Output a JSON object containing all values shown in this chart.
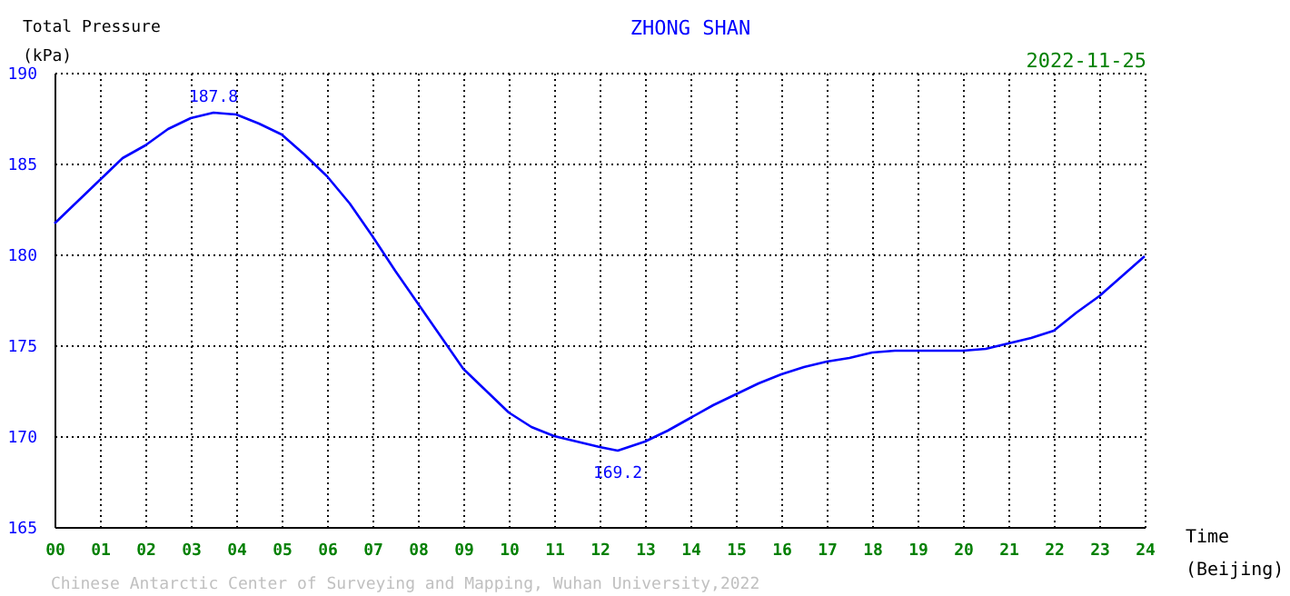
{
  "chart_data": {
    "type": "line",
    "title": "ZHONG SHAN",
    "subtitle": "2022-11-25",
    "xlabel": "Time\n(Beijing)",
    "ylabel": "Total Pressure\n(kPa)",
    "x": [
      0,
      0.5,
      1,
      1.5,
      2,
      2.5,
      3,
      3.5,
      4,
      4.5,
      5,
      5.5,
      6,
      6.5,
      7,
      7.5,
      8,
      8.5,
      9,
      9.5,
      10,
      10.5,
      11,
      11.5,
      12,
      12.4,
      13,
      13.5,
      14,
      14.5,
      15,
      15.5,
      16,
      16.5,
      17,
      17.5,
      18,
      18.5,
      19,
      19.5,
      20,
      20.5,
      21,
      21.5,
      22,
      22.5,
      23,
      23.5,
      24
    ],
    "series": [
      {
        "color": "#0000ff",
        "values": [
          181.7,
          182.9,
          184.1,
          185.3,
          186.0,
          186.9,
          187.5,
          187.8,
          187.7,
          187.2,
          186.6,
          185.5,
          184.3,
          182.8,
          181.0,
          179.1,
          177.3,
          175.5,
          173.7,
          172.5,
          171.3,
          170.5,
          170.0,
          169.7,
          169.4,
          169.2,
          169.7,
          170.3,
          171.0,
          171.7,
          172.3,
          172.9,
          173.4,
          173.8,
          174.1,
          174.3,
          174.6,
          174.7,
          174.7,
          174.7,
          174.7,
          174.8,
          175.1,
          175.4,
          175.8,
          176.8,
          177.7,
          178.8,
          179.9
        ]
      }
    ],
    "xlim": [
      0,
      24
    ],
    "ylim": [
      165,
      190
    ],
    "xticks": [
      {
        "value": 0,
        "label": "00"
      },
      {
        "value": 1,
        "label": "01"
      },
      {
        "value": 2,
        "label": "02"
      },
      {
        "value": 3,
        "label": "03"
      },
      {
        "value": 4,
        "label": "04"
      },
      {
        "value": 5,
        "label": "05"
      },
      {
        "value": 6,
        "label": "06"
      },
      {
        "value": 7,
        "label": "07"
      },
      {
        "value": 8,
        "label": "08"
      },
      {
        "value": 9,
        "label": "09"
      },
      {
        "value": 10,
        "label": "10"
      },
      {
        "value": 11,
        "label": "11"
      },
      {
        "value": 12,
        "label": "12"
      },
      {
        "value": 13,
        "label": "13"
      },
      {
        "value": 14,
        "label": "14"
      },
      {
        "value": 15,
        "label": "15"
      },
      {
        "value": 16,
        "label": "16"
      },
      {
        "value": 17,
        "label": "17"
      },
      {
        "value": 18,
        "label": "18"
      },
      {
        "value": 19,
        "label": "19"
      },
      {
        "value": 20,
        "label": "20"
      },
      {
        "value": 21,
        "label": "21"
      },
      {
        "value": 22,
        "label": "22"
      },
      {
        "value": 23,
        "label": "23"
      },
      {
        "value": 24,
        "label": "24"
      }
    ],
    "yticks": [
      165,
      170,
      175,
      180,
      185,
      190
    ],
    "grid": true,
    "marker": "none",
    "line_style": "solid",
    "annotations": [
      {
        "text": "187.8",
        "x": 3.5,
        "y": 187.8
      },
      {
        "text": "169.2",
        "x": 12.4,
        "y": 169.2
      },
      "Chinese Antarctic Center of Surveying and Mapping, Wuhan University,2022"
    ]
  }
}
